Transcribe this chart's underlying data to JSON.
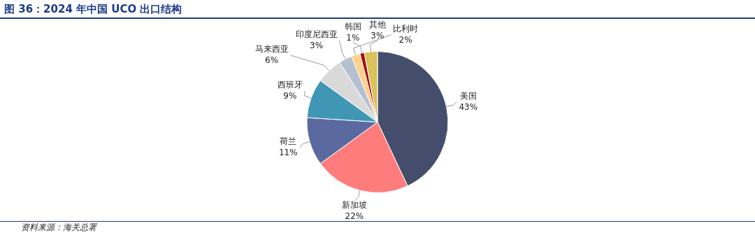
{
  "chart_data": {
    "type": "pie",
    "title": "图 36：2024 年中国 UCO 出口结构",
    "categories": [
      "美国",
      "新加坡",
      "荷兰",
      "西班牙",
      "马来西亚",
      "印度尼西亚",
      "比利时",
      "韩国",
      "其他"
    ],
    "values": [
      43,
      22,
      11,
      9,
      6,
      3,
      2,
      1,
      3
    ],
    "value_labels": [
      "43%",
      "22%",
      "11%",
      "9%",
      "6%",
      "3%",
      "2%",
      "1%",
      "3%"
    ],
    "colors": [
      "#444e6c",
      "#ff7c7c",
      "#5a6aa0",
      "#3f97b5",
      "#d9d9d9",
      "#b4bfd0",
      "#ffd08a",
      "#a50f15",
      "#d9c35a"
    ],
    "legend": false,
    "annotations": [
      "资料来源：海关总署"
    ]
  }
}
